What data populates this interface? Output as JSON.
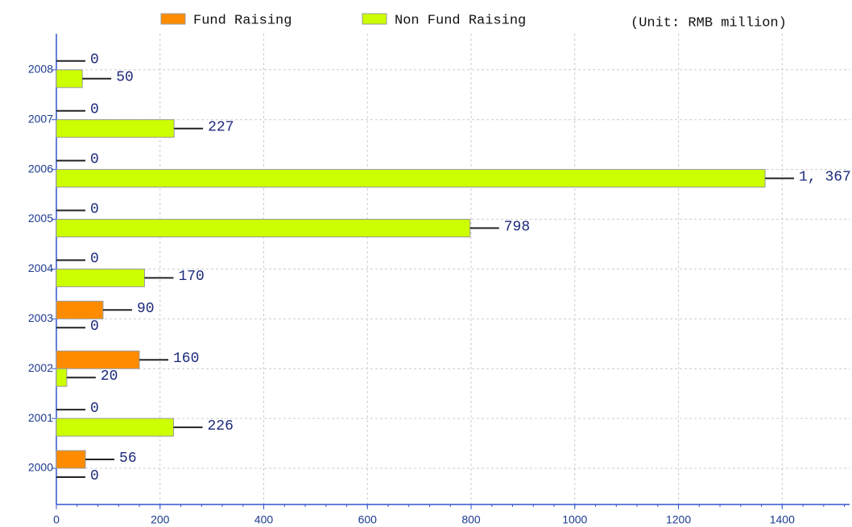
{
  "chart_data": {
    "type": "barh",
    "note": "(Unit: RMB million)",
    "categories": [
      "2000",
      "2001",
      "2002",
      "2003",
      "2004",
      "2005",
      "2006",
      "2007",
      "2008"
    ],
    "series": [
      {
        "name": "Fund Raising",
        "color": "#ff8c00",
        "values": [
          56,
          0,
          160,
          90,
          0,
          0,
          0,
          0,
          0
        ]
      },
      {
        "name": "Non Fund Raising",
        "color": "#ccff00",
        "values": [
          0,
          226,
          20,
          0,
          170,
          798,
          1367,
          227,
          50
        ],
        "value_labels": [
          "0",
          "226",
          "20",
          "0",
          "170",
          "798",
          "1, 367",
          "227",
          "50"
        ]
      }
    ],
    "xlim": [
      0,
      1530
    ],
    "xticks": [
      0,
      200,
      400,
      600,
      800,
      1000,
      1200,
      1400
    ],
    "grid": true,
    "legend": "top"
  }
}
